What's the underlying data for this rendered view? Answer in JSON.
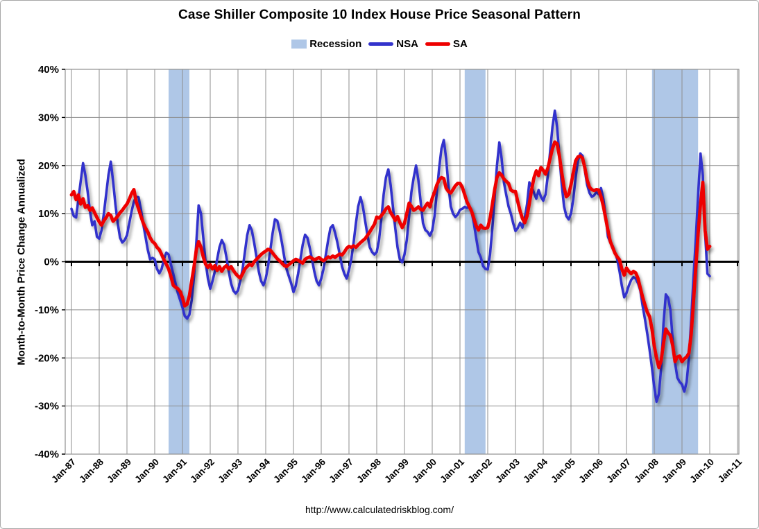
{
  "page": {
    "title": "Case Shiller Composite 10 Index House Price Seasonal Pattern",
    "source_url": "http://www.calculatedriskblog.com/"
  },
  "chart_data": {
    "type": "line",
    "title": "Case Shiller Composite 10 Index House Price Seasonal Pattern",
    "xlabel": "",
    "ylabel": "Month-to-Month Price Change Annualized",
    "ylim": [
      -40,
      40
    ],
    "y_ticks": [
      40,
      30,
      20,
      10,
      0,
      -10,
      -20,
      -30,
      -40
    ],
    "y_tick_suffix": "%",
    "x_tick_labels": [
      "Jan-87",
      "Jan-88",
      "Jan-89",
      "Jan-90",
      "Jan-91",
      "Jan-92",
      "Jan-93",
      "Jan-94",
      "Jan-95",
      "Jan-96",
      "Jan-97",
      "Jan-98",
      "Jan-99",
      "Jan-00",
      "Jan-01",
      "Jan-02",
      "Jan-03",
      "Jan-04",
      "Jan-05",
      "Jan-06",
      "Jan-07",
      "Jan-08",
      "Jan-09",
      "Jan-10",
      "Jan-11"
    ],
    "x_start_year": 1987,
    "x_end_year": 2011,
    "grid": true,
    "legend_position": "top",
    "legend": [
      {
        "id": "recession",
        "label": "Recession",
        "color": "#afc7e7",
        "swatch": "box"
      },
      {
        "id": "nsa",
        "label": "NSA",
        "color": "#3333cc",
        "swatch": "line"
      },
      {
        "id": "sa",
        "label": "SA",
        "color": "#ee0000",
        "swatch": "line"
      }
    ],
    "recession_bands": [
      [
        1990.5,
        1991.25
      ],
      [
        2001.17,
        2001.92
      ],
      [
        2007.92,
        2009.58
      ]
    ],
    "series_start": "Jan-1987",
    "series_interval": "monthly",
    "series": [
      {
        "name": "NSA",
        "color": "#3333cc",
        "width": 3.6,
        "values": [
          11.0,
          9.5,
          9.2,
          13.0,
          16.7,
          20.5,
          18.0,
          14.6,
          10.5,
          7.6,
          8.4,
          5.2,
          4.8,
          6.5,
          10.0,
          14.0,
          18.0,
          20.8,
          16.7,
          12.0,
          8.0,
          5.0,
          4.0,
          4.5,
          5.5,
          8.0,
          10.5,
          12.5,
          13.5,
          13.4,
          11.0,
          8.0,
          5.2,
          2.5,
          0.5,
          0.8,
          0.5,
          -1.5,
          -2.4,
          -1.5,
          0.5,
          1.9,
          1.5,
          -0.5,
          -2.5,
          -4.5,
          -6.5,
          -8.0,
          -9.5,
          -11.3,
          -11.8,
          -11.0,
          -8.0,
          -3.0,
          4.0,
          11.7,
          10.0,
          5.0,
          0.0,
          -3.5,
          -5.6,
          -4.0,
          -2.0,
          0.5,
          3.0,
          4.5,
          3.5,
          1.0,
          -2.0,
          -4.5,
          -6.0,
          -6.6,
          -6.0,
          -4.0,
          -1.5,
          2.0,
          5.5,
          7.6,
          6.5,
          4.0,
          1.0,
          -2.0,
          -4.0,
          -4.9,
          -3.5,
          -1.0,
          2.5,
          6.0,
          8.8,
          8.5,
          6.5,
          4.0,
          1.0,
          -1.5,
          -3.0,
          -4.5,
          -6.3,
          -5.0,
          -2.5,
          0.5,
          3.5,
          5.6,
          5.0,
          3.0,
          0.5,
          -2.0,
          -4.0,
          -4.9,
          -3.5,
          -1.5,
          1.5,
          4.5,
          7.0,
          7.6,
          6.0,
          4.0,
          1.5,
          -1.0,
          -2.5,
          -3.5,
          -1.7,
          0.5,
          4.0,
          8.0,
          11.5,
          13.4,
          11.5,
          8.5,
          5.5,
          3.0,
          2.0,
          1.5,
          2.0,
          4.5,
          9.0,
          14.0,
          17.5,
          19.2,
          16.0,
          11.5,
          7.0,
          3.0,
          0.5,
          -0.1,
          1.5,
          4.5,
          9.5,
          14.5,
          17.5,
          20.0,
          17.0,
          12.5,
          8.0,
          6.6,
          6.2,
          5.4,
          6.5,
          9.5,
          14.5,
          19.5,
          23.5,
          25.3,
          21.5,
          16.0,
          11.5,
          10.0,
          9.3,
          9.8,
          10.8,
          11.0,
          11.4,
          11.2,
          11.5,
          10.5,
          8.0,
          5.0,
          2.0,
          0.9,
          -0.9,
          -1.5,
          -1.6,
          1.5,
          7.0,
          13.4,
          20.0,
          24.8,
          21.5,
          16.5,
          13.9,
          11.5,
          10.0,
          8.0,
          6.4,
          7.0,
          8.1,
          7.1,
          9.0,
          12.0,
          16.5,
          15.6,
          14.3,
          13.1,
          14.9,
          13.5,
          12.7,
          14.0,
          18.0,
          23.0,
          28.0,
          31.4,
          28.0,
          22.0,
          16.0,
          11.5,
          9.5,
          8.8,
          10.0,
          13.0,
          17.5,
          21.0,
          22.5,
          22.0,
          19.0,
          16.0,
          14.3,
          13.5,
          13.8,
          14.5,
          14.0,
          15.3,
          13.0,
          9.5,
          5.2,
          4.0,
          3.3,
          2.0,
          0.5,
          -2.0,
          -5.0,
          -7.4,
          -6.5,
          -5.0,
          -3.8,
          -3.2,
          -3.5,
          -4.5,
          -6.0,
          -9.2,
          -12.0,
          -15.0,
          -18.3,
          -22.0,
          -26.0,
          -29.1,
          -27.5,
          -22.0,
          -13.0,
          -6.8,
          -7.5,
          -10.0,
          -16.4,
          -21.0,
          -24.1,
          -25.0,
          -25.5,
          -27.0,
          -25.0,
          -20.0,
          -12.0,
          -3.0,
          5.0,
          14.0,
          22.5,
          18.0,
          6.0,
          -2.5,
          -3.0
        ]
      },
      {
        "name": "SA",
        "color": "#ee0000",
        "width": 4.8,
        "values": [
          13.9,
          14.6,
          12.9,
          13.9,
          12.0,
          13.1,
          11.3,
          11.7,
          10.7,
          11.2,
          10.2,
          9.2,
          8.3,
          7.6,
          8.5,
          9.2,
          10.0,
          9.6,
          8.4,
          8.9,
          9.5,
          10.2,
          10.7,
          11.4,
          12.0,
          13.0,
          14.2,
          15.0,
          12.5,
          11.0,
          9.5,
          8.1,
          7.0,
          6.2,
          5.0,
          4.2,
          3.8,
          3.0,
          2.5,
          1.5,
          0.4,
          -0.5,
          -1.5,
          -3.0,
          -4.9,
          -5.3,
          -5.6,
          -6.2,
          -7.5,
          -9.2,
          -8.8,
          -7.0,
          -4.0,
          -1.0,
          2.5,
          4.2,
          3.0,
          1.0,
          -0.5,
          -1.2,
          -0.6,
          -1.5,
          -0.8,
          -1.8,
          -1.0,
          -2.0,
          -1.2,
          -0.8,
          -1.5,
          -1.0,
          -1.8,
          -2.5,
          -3.0,
          -3.4,
          -2.5,
          -1.5,
          -1.0,
          -0.5,
          -0.8,
          0.0,
          0.5,
          1.0,
          1.5,
          1.9,
          2.2,
          2.6,
          2.4,
          1.8,
          1.2,
          0.6,
          0.2,
          -0.3,
          -0.8,
          -1.0,
          -0.6,
          -0.2,
          0.2,
          0.5,
          0.3,
          0.0,
          -0.3,
          0.5,
          0.8,
          1.0,
          0.7,
          0.4,
          0.6,
          0.9,
          0.5,
          0.2,
          0.6,
          1.0,
          0.8,
          1.2,
          0.9,
          1.3,
          1.6,
          1.4,
          2.0,
          2.8,
          3.2,
          3.0,
          3.3,
          3.0,
          3.5,
          4.0,
          4.4,
          4.8,
          5.5,
          6.2,
          7.0,
          7.8,
          9.3,
          9.1,
          9.6,
          10.2,
          11.0,
          11.4,
          10.2,
          9.5,
          8.6,
          9.4,
          8.2,
          7.1,
          8.0,
          10.0,
          12.2,
          11.5,
          10.7,
          11.0,
          11.4,
          10.9,
          10.7,
          11.5,
          12.2,
          11.4,
          13.2,
          14.5,
          16.0,
          17.0,
          17.5,
          17.3,
          15.3,
          14.6,
          14.3,
          15.0,
          15.8,
          16.3,
          16.3,
          15.5,
          14.0,
          12.5,
          11.5,
          10.5,
          9.0,
          7.5,
          6.6,
          7.6,
          7.0,
          6.9,
          7.1,
          9.0,
          12.0,
          15.0,
          17.5,
          18.5,
          18.0,
          17.2,
          16.7,
          16.3,
          14.9,
          14.6,
          14.6,
          12.5,
          10.5,
          9.0,
          8.1,
          9.5,
          12.1,
          15.0,
          17.5,
          18.9,
          17.9,
          19.6,
          19.0,
          18.2,
          19.5,
          21.5,
          23.5,
          24.9,
          24.5,
          22.0,
          18.5,
          15.5,
          13.5,
          14.0,
          16.0,
          18.5,
          21.0,
          21.8,
          22.0,
          21.5,
          19.5,
          17.0,
          15.5,
          15.0,
          14.8,
          15.0,
          14.9,
          13.5,
          11.5,
          9.0,
          6.5,
          4.2,
          3.0,
          1.8,
          1.0,
          0.4,
          -1.5,
          -2.8,
          -1.3,
          -2.0,
          -2.5,
          -2.0,
          -2.3,
          -3.5,
          -5.5,
          -7.4,
          -9.0,
          -10.5,
          -11.4,
          -14.0,
          -17.5,
          -20.0,
          -22.0,
          -20.5,
          -17.0,
          -14.0,
          -14.8,
          -15.3,
          -17.5,
          -20.8,
          -19.8,
          -19.6,
          -20.8,
          -20.2,
          -19.8,
          -19.0,
          -15.0,
          -8.0,
          -1.0,
          6.0,
          12.0,
          16.5,
          6.5,
          2.6,
          3.2
        ]
      }
    ],
    "colors": {
      "recession_band": "#afc7e7",
      "grid": "#8c8c8c",
      "zero_line": "#000000",
      "plot_border": "#909090",
      "text": "#000000",
      "background": "#ffffff"
    },
    "source": "http://www.calculatedriskblog.com/"
  }
}
